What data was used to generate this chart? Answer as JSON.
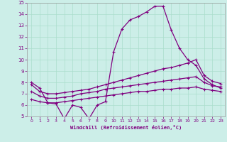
{
  "line1_x": [
    0,
    1,
    2,
    3,
    4,
    5,
    6,
    7,
    8,
    9,
    10,
    11,
    12,
    13,
    14,
    15,
    16,
    17,
    18,
    19,
    20,
    21,
    22,
    23
  ],
  "line1_y": [
    8.0,
    7.5,
    6.2,
    6.1,
    4.8,
    6.0,
    5.8,
    4.8,
    6.0,
    6.3,
    10.7,
    12.7,
    13.5,
    13.8,
    14.2,
    14.7,
    14.7,
    12.6,
    11.0,
    10.0,
    9.5,
    8.3,
    7.8,
    7.5
  ],
  "line2_x": [
    0,
    1,
    2,
    3,
    4,
    5,
    6,
    7,
    8,
    9,
    10,
    11,
    12,
    13,
    14,
    15,
    16,
    17,
    18,
    19,
    20,
    21,
    22,
    23
  ],
  "line2_y": [
    7.8,
    7.2,
    7.0,
    7.0,
    7.1,
    7.2,
    7.3,
    7.4,
    7.6,
    7.8,
    8.0,
    8.2,
    8.4,
    8.6,
    8.8,
    9.0,
    9.2,
    9.3,
    9.5,
    9.7,
    10.0,
    8.6,
    8.1,
    7.9
  ],
  "line3_x": [
    0,
    1,
    2,
    3,
    4,
    5,
    6,
    7,
    8,
    9,
    10,
    11,
    12,
    13,
    14,
    15,
    16,
    17,
    18,
    19,
    20,
    21,
    22,
    23
  ],
  "line3_y": [
    7.2,
    6.8,
    6.6,
    6.6,
    6.7,
    6.8,
    7.0,
    7.1,
    7.2,
    7.4,
    7.5,
    7.6,
    7.7,
    7.8,
    7.9,
    8.0,
    8.1,
    8.2,
    8.3,
    8.4,
    8.5,
    8.0,
    7.7,
    7.6
  ],
  "line4_x": [
    0,
    1,
    2,
    3,
    4,
    5,
    6,
    7,
    8,
    9,
    10,
    11,
    12,
    13,
    14,
    15,
    16,
    17,
    18,
    19,
    20,
    21,
    22,
    23
  ],
  "line4_y": [
    6.5,
    6.3,
    6.2,
    6.2,
    6.3,
    6.4,
    6.5,
    6.6,
    6.7,
    6.8,
    6.9,
    7.0,
    7.1,
    7.2,
    7.2,
    7.3,
    7.4,
    7.4,
    7.5,
    7.5,
    7.6,
    7.4,
    7.3,
    7.2
  ],
  "line_color": "#800080",
  "marker": "+",
  "bg_color": "#cceee8",
  "grid_color": "#aaddcc",
  "xlim_min": -0.5,
  "xlim_max": 23.5,
  "ylim_min": 5,
  "ylim_max": 15,
  "yticks": [
    5,
    6,
    7,
    8,
    9,
    10,
    11,
    12,
    13,
    14,
    15
  ],
  "xticks": [
    0,
    1,
    2,
    3,
    4,
    5,
    6,
    7,
    8,
    9,
    10,
    11,
    12,
    13,
    14,
    15,
    16,
    17,
    18,
    19,
    20,
    21,
    22,
    23
  ],
  "xlabel": "Windchill (Refroidissement éolien,°C)"
}
